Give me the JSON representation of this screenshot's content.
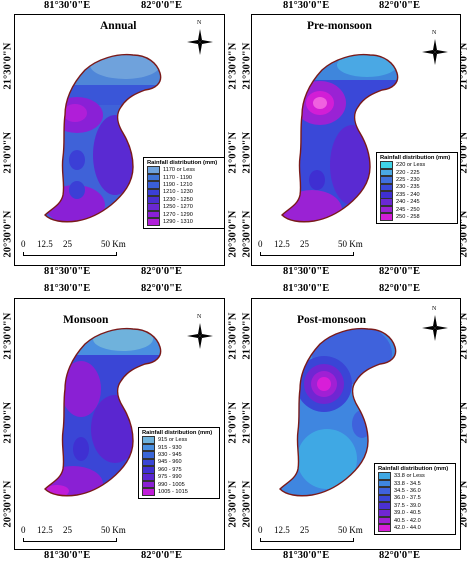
{
  "top_coords": {
    "lon1": "81°30'0\"E",
    "lon2": "82°0'0\"E"
  },
  "mid_coords_left": {
    "lon1": "81°30'0\"E",
    "lon2": "82°0'0\"E"
  },
  "mid_coords_right": {
    "lon1": "81°30'0\"E",
    "lon2": "82°0'0\"E"
  },
  "bottom_coords": {
    "lon1": "81°30'0\"E",
    "lon2": "82°0'0\"E"
  },
  "lat_labels": {
    "lat1": "21°30'0\"N",
    "lat2": "21°0'0\"N",
    "lat3": "20°30'0\"N"
  },
  "north_label": "N",
  "panels": [
    {
      "title": "Annual",
      "legend_title": "Rainfall distribution (mm)",
      "classes": [
        "1170 or Less",
        "1170 - 1190",
        "1190 - 1210",
        "1210 - 1230",
        "1230 - 1250",
        "1250 - 1270",
        "1270 - 1290",
        "1290 - 1310"
      ],
      "colors": [
        "#6fa2dc",
        "#3f74d6",
        "#3a5fd8",
        "#3b3fd6",
        "#4a2ed0",
        "#6a28d2",
        "#8a20d6",
        "#b01ed8"
      ]
    },
    {
      "title": "Pre-monsoon",
      "legend_title": "Rainfall distribution (mm)",
      "classes": [
        "220 or Less",
        "220 - 225",
        "225 - 230",
        "230 - 235",
        "235 - 240",
        "240 - 245",
        "245 - 250",
        "250 - 258"
      ],
      "colors": [
        "#3fd4e8",
        "#4aa8e4",
        "#3f6fdc",
        "#3a48d8",
        "#3f2fd2",
        "#6a28d2",
        "#9a22d4",
        "#d21ed6"
      ]
    },
    {
      "title": "Monsoon",
      "legend_title": "Rainfall distribution (mm)",
      "classes": [
        "915 or Less",
        "915 - 930",
        "930 - 945",
        "945 - 960",
        "960 - 975",
        "975 - 990",
        "990 - 1005",
        "1005 - 1015"
      ],
      "colors": [
        "#6fb2dc",
        "#4a8fe0",
        "#3a66d8",
        "#3a46d6",
        "#3f30d2",
        "#5a26d0",
        "#8a20d4",
        "#c01cd8"
      ]
    },
    {
      "title": "Post-monsoon",
      "legend_title": "Rainfall distribution (mm)",
      "classes": [
        "33.8 or Less",
        "33.8 - 34.5",
        "34.5 - 36.0",
        "36.0 - 37.5",
        "37.5 - 39.0",
        "39.0 - 40.5",
        "40.5 - 42.0",
        "42.0 - 44.0"
      ],
      "colors": [
        "#3fa8e4",
        "#3f86e0",
        "#3f62dc",
        "#3a45d6",
        "#4a30d2",
        "#7026d2",
        "#a020d4",
        "#d81ed8"
      ]
    }
  ],
  "scale": {
    "t0": "0",
    "t1": "12.5",
    "t2": "25",
    "t3": "50 Km"
  }
}
